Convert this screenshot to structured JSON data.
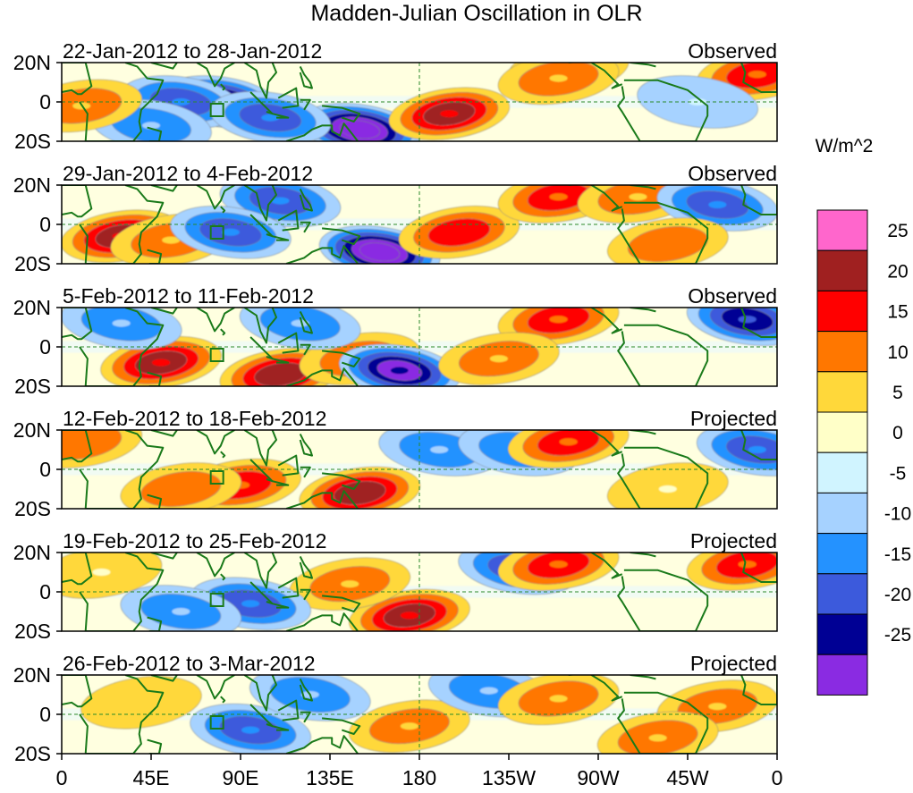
{
  "chart_data": {
    "type": "heatmap",
    "title": "Madden-Julian Oscillation in OLR",
    "unit_label": "W/m^2",
    "x_ticks": [
      "0",
      "45E",
      "90E",
      "135E",
      "180",
      "135W",
      "90W",
      "45W",
      "0"
    ],
    "x_tick_lons": [
      0,
      45,
      90,
      135,
      180,
      225,
      270,
      315,
      360
    ],
    "y_ticks": [
      "20N",
      "0",
      "20S"
    ],
    "y_tick_lats": [
      20,
      0,
      -20
    ],
    "xlim": [
      0,
      360
    ],
    "ylim": [
      -20,
      20
    ],
    "colorbar": {
      "levels": [
        "25",
        "20",
        "15",
        "10",
        "5",
        "0",
        "-5",
        "-10",
        "-15",
        "-20",
        "-25"
      ],
      "colors": [
        "#ff66cc",
        "#a02020",
        "#ff0000",
        "#ff7700",
        "#ffd83a",
        "#ffffc8",
        "#d0f4ff",
        "#a6d2ff",
        "#2492ff",
        "#3c5adc",
        "#000094",
        "#8a2be2"
      ]
    },
    "panels": [
      {
        "period": "22-Jan-2012 to 28-Jan-2012",
        "status": "Observed",
        "anomalies": [
          {
            "lon": 80,
            "lat": 0,
            "value": -25
          },
          {
            "lon": 60,
            "lat": 0,
            "value": -12
          },
          {
            "lon": 150,
            "lat": -14,
            "value": -30
          },
          {
            "lon": 105,
            "lat": -8,
            "value": -12
          },
          {
            "lon": 45,
            "lat": -12,
            "value": -8
          },
          {
            "lon": 195,
            "lat": -6,
            "value": 17
          },
          {
            "lon": 255,
            "lat": 17,
            "value": 15
          },
          {
            "lon": 250,
            "lat": 12,
            "value": 8
          },
          {
            "lon": 350,
            "lat": 14,
            "value": 12
          },
          {
            "lon": 10,
            "lat": -2,
            "value": 8
          },
          {
            "lon": 320,
            "lat": 0,
            "value": -3
          }
        ]
      },
      {
        "period": "29-Jan-2012 to 4-Feb-2012",
        "status": "Observed",
        "anomalies": [
          {
            "lon": 30,
            "lat": -6,
            "value": 18
          },
          {
            "lon": 55,
            "lat": -8,
            "value": 8
          },
          {
            "lon": 110,
            "lat": 12,
            "value": -12
          },
          {
            "lon": 85,
            "lat": -4,
            "value": -14
          },
          {
            "lon": 160,
            "lat": -14,
            "value": -27
          },
          {
            "lon": 200,
            "lat": -4,
            "value": 15
          },
          {
            "lon": 250,
            "lat": 14,
            "value": 13
          },
          {
            "lon": 290,
            "lat": 14,
            "value": 6
          },
          {
            "lon": 330,
            "lat": 10,
            "value": -14
          },
          {
            "lon": 305,
            "lat": -10,
            "value": 10
          }
        ]
      },
      {
        "period": "5-Feb-2012 to 11-Feb-2012",
        "status": "Observed",
        "anomalies": [
          {
            "lon": 50,
            "lat": -8,
            "value": 18
          },
          {
            "lon": 110,
            "lat": -14,
            "value": 20
          },
          {
            "lon": 150,
            "lat": -6,
            "value": 6
          },
          {
            "lon": 170,
            "lat": -12,
            "value": -22
          },
          {
            "lon": 120,
            "lat": 12,
            "value": -10
          },
          {
            "lon": 250,
            "lat": 14,
            "value": 12
          },
          {
            "lon": 345,
            "lat": 14,
            "value": -18
          },
          {
            "lon": 220,
            "lat": -6,
            "value": 6
          },
          {
            "lon": 30,
            "lat": 12,
            "value": -6
          }
        ]
      },
      {
        "period": "12-Feb-2012 to 18-Feb-2012",
        "status": "Projected",
        "anomalies": [
          {
            "lon": 90,
            "lat": -8,
            "value": 12
          },
          {
            "lon": 150,
            "lat": -12,
            "value": 20
          },
          {
            "lon": 60,
            "lat": -10,
            "value": 10
          },
          {
            "lon": 190,
            "lat": 10,
            "value": -10
          },
          {
            "lon": 230,
            "lat": 10,
            "value": -6
          },
          {
            "lon": 255,
            "lat": 14,
            "value": 13
          },
          {
            "lon": 350,
            "lat": 10,
            "value": -14
          },
          {
            "lon": 10,
            "lat": 14,
            "value": 10
          },
          {
            "lon": 305,
            "lat": -10,
            "value": 4
          }
        ]
      },
      {
        "period": "19-Feb-2012 to 25-Feb-2012",
        "status": "Projected",
        "anomalies": [
          {
            "lon": 175,
            "lat": -12,
            "value": 18
          },
          {
            "lon": 145,
            "lat": 4,
            "value": 8
          },
          {
            "lon": 95,
            "lat": -6,
            "value": -12
          },
          {
            "lon": 60,
            "lat": -10,
            "value": -6
          },
          {
            "lon": 230,
            "lat": 12,
            "value": -12
          },
          {
            "lon": 250,
            "lat": 14,
            "value": 14
          },
          {
            "lon": 345,
            "lat": 14,
            "value": 12
          },
          {
            "lon": 20,
            "lat": 10,
            "value": 4
          }
        ]
      },
      {
        "period": "26-Feb-2012 to 3-Mar-2012",
        "status": "Projected",
        "anomalies": [
          {
            "lon": 95,
            "lat": -8,
            "value": -12
          },
          {
            "lon": 125,
            "lat": 10,
            "value": -6
          },
          {
            "lon": 175,
            "lat": -6,
            "value": 8
          },
          {
            "lon": 215,
            "lat": 12,
            "value": -10
          },
          {
            "lon": 250,
            "lat": 8,
            "value": 6
          },
          {
            "lon": 330,
            "lat": 4,
            "value": 6
          },
          {
            "lon": 40,
            "lat": 6,
            "value": 5
          },
          {
            "lon": 300,
            "lat": -12,
            "value": 6
          }
        ]
      }
    ]
  }
}
